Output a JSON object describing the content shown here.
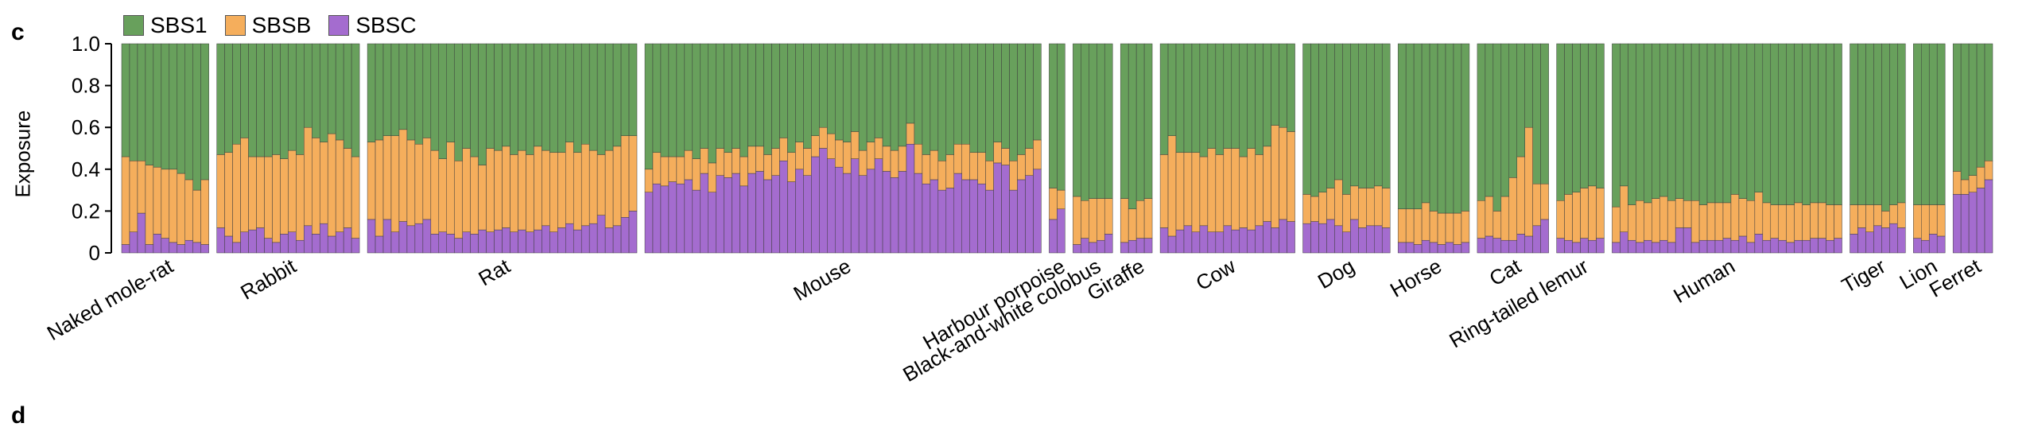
{
  "panel_letters": {
    "c": "c",
    "d": "d"
  },
  "chart_data": {
    "type": "bar",
    "stacked": true,
    "normalized": true,
    "title": "",
    "xlabel": "",
    "ylabel": "Exposure",
    "ylim": [
      0,
      1.0
    ],
    "yticks": [
      "0",
      "0.2",
      "0.4",
      "0.6",
      "0.8",
      "1.0"
    ],
    "legend_position": "top-left",
    "series_order": [
      "SBSC",
      "SBSB",
      "SBS1"
    ],
    "series_colors": {
      "SBS1": "#68a05c",
      "SBSB": "#f5ae5c",
      "SBSC": "#a46ccf"
    },
    "legend": [
      "SBS1",
      "SBSB",
      "SBSC"
    ],
    "groups": [
      {
        "name": "Naked mole-rat",
        "SBSC": [
          0.04,
          0.1,
          0.19,
          0.04,
          0.09,
          0.07,
          0.05,
          0.04,
          0.06,
          0.05,
          0.04
        ],
        "SBSB": [
          0.42,
          0.34,
          0.25,
          0.38,
          0.32,
          0.33,
          0.35,
          0.34,
          0.29,
          0.25,
          0.31
        ]
      },
      {
        "name": "Rabbit",
        "SBSC": [
          0.12,
          0.08,
          0.05,
          0.1,
          0.11,
          0.12,
          0.07,
          0.05,
          0.09,
          0.1,
          0.06,
          0.13,
          0.09,
          0.14,
          0.08,
          0.1,
          0.12,
          0.07
        ],
        "SBSB": [
          0.35,
          0.4,
          0.47,
          0.45,
          0.35,
          0.34,
          0.39,
          0.42,
          0.36,
          0.39,
          0.41,
          0.47,
          0.46,
          0.39,
          0.49,
          0.44,
          0.38,
          0.39
        ]
      },
      {
        "name": "Rat",
        "SBSC": [
          0.16,
          0.08,
          0.16,
          0.1,
          0.15,
          0.13,
          0.14,
          0.16,
          0.09,
          0.1,
          0.09,
          0.07,
          0.1,
          0.09,
          0.11,
          0.1,
          0.11,
          0.12,
          0.1,
          0.11,
          0.1,
          0.11,
          0.13,
          0.1,
          0.12,
          0.14,
          0.11,
          0.13,
          0.14,
          0.18,
          0.12,
          0.13,
          0.17,
          0.2
        ],
        "SBSB": [
          0.37,
          0.46,
          0.4,
          0.46,
          0.44,
          0.41,
          0.38,
          0.39,
          0.4,
          0.35,
          0.44,
          0.37,
          0.4,
          0.37,
          0.31,
          0.4,
          0.38,
          0.39,
          0.37,
          0.38,
          0.37,
          0.4,
          0.36,
          0.38,
          0.36,
          0.39,
          0.37,
          0.39,
          0.35,
          0.29,
          0.37,
          0.38,
          0.39,
          0.36
        ]
      },
      {
        "name": "Mouse",
        "SBSC": [
          0.29,
          0.33,
          0.32,
          0.34,
          0.33,
          0.35,
          0.3,
          0.38,
          0.29,
          0.37,
          0.36,
          0.38,
          0.32,
          0.38,
          0.39,
          0.35,
          0.37,
          0.44,
          0.34,
          0.4,
          0.37,
          0.46,
          0.5,
          0.45,
          0.41,
          0.38,
          0.45,
          0.37,
          0.4,
          0.45,
          0.39,
          0.36,
          0.39,
          0.52,
          0.38,
          0.33,
          0.35,
          0.3,
          0.31,
          0.38,
          0.35,
          0.35,
          0.33,
          0.3,
          0.43,
          0.42,
          0.3,
          0.35,
          0.37,
          0.4
        ],
        "SBSB": [
          0.11,
          0.15,
          0.14,
          0.12,
          0.13,
          0.14,
          0.15,
          0.12,
          0.14,
          0.13,
          0.12,
          0.12,
          0.14,
          0.13,
          0.12,
          0.12,
          0.13,
          0.11,
          0.14,
          0.13,
          0.13,
          0.1,
          0.1,
          0.12,
          0.13,
          0.15,
          0.13,
          0.12,
          0.13,
          0.1,
          0.12,
          0.13,
          0.12,
          0.1,
          0.14,
          0.14,
          0.14,
          0.14,
          0.16,
          0.14,
          0.17,
          0.13,
          0.15,
          0.14,
          0.1,
          0.08,
          0.14,
          0.12,
          0.13,
          0.14
        ]
      },
      {
        "name": "Harbour porpoise",
        "SBSC": [
          0.16,
          0.21
        ],
        "SBSB": [
          0.15,
          0.09
        ]
      },
      {
        "name": "Black-and-white colobus",
        "SBSC": [
          0.04,
          0.07,
          0.05,
          0.06,
          0.09
        ],
        "SBSB": [
          0.23,
          0.18,
          0.21,
          0.2,
          0.17
        ]
      },
      {
        "name": "Giraffe",
        "SBSC": [
          0.05,
          0.06,
          0.07,
          0.07
        ],
        "SBSB": [
          0.21,
          0.15,
          0.18,
          0.19
        ]
      },
      {
        "name": "Cow",
        "SBSC": [
          0.12,
          0.08,
          0.11,
          0.13,
          0.1,
          0.13,
          0.1,
          0.1,
          0.13,
          0.11,
          0.12,
          0.11,
          0.13,
          0.15,
          0.12,
          0.16,
          0.15
        ],
        "SBSB": [
          0.35,
          0.48,
          0.37,
          0.35,
          0.38,
          0.33,
          0.4,
          0.37,
          0.37,
          0.39,
          0.34,
          0.39,
          0.34,
          0.36,
          0.49,
          0.44,
          0.43
        ]
      },
      {
        "name": "Dog",
        "SBSC": [
          0.14,
          0.15,
          0.14,
          0.16,
          0.13,
          0.1,
          0.16,
          0.12,
          0.13,
          0.13,
          0.12
        ],
        "SBSB": [
          0.14,
          0.12,
          0.15,
          0.15,
          0.22,
          0.18,
          0.16,
          0.19,
          0.18,
          0.19,
          0.19
        ]
      },
      {
        "name": "Horse",
        "SBSC": [
          0.05,
          0.05,
          0.04,
          0.06,
          0.05,
          0.04,
          0.05,
          0.04,
          0.05
        ],
        "SBSB": [
          0.16,
          0.16,
          0.17,
          0.18,
          0.15,
          0.15,
          0.14,
          0.15,
          0.15
        ]
      },
      {
        "name": "Cat",
        "SBSC": [
          0.07,
          0.08,
          0.07,
          0.06,
          0.06,
          0.09,
          0.08,
          0.13,
          0.16
        ],
        "SBSB": [
          0.18,
          0.19,
          0.13,
          0.21,
          0.3,
          0.37,
          0.52,
          0.2,
          0.17
        ]
      },
      {
        "name": "Ring-tailed lemur",
        "SBSC": [
          0.07,
          0.06,
          0.05,
          0.07,
          0.06,
          0.07
        ],
        "SBSB": [
          0.18,
          0.22,
          0.24,
          0.24,
          0.26,
          0.24
        ]
      },
      {
        "name": "Human",
        "SBSC": [
          0.05,
          0.1,
          0.06,
          0.05,
          0.06,
          0.05,
          0.06,
          0.05,
          0.12,
          0.12,
          0.05,
          0.06,
          0.06,
          0.06,
          0.07,
          0.06,
          0.08,
          0.05,
          0.09,
          0.06,
          0.07,
          0.06,
          0.05,
          0.06,
          0.06,
          0.07,
          0.07,
          0.06,
          0.07
        ],
        "SBSB": [
          0.17,
          0.22,
          0.17,
          0.2,
          0.18,
          0.21,
          0.21,
          0.2,
          0.14,
          0.13,
          0.2,
          0.17,
          0.18,
          0.18,
          0.17,
          0.22,
          0.18,
          0.2,
          0.2,
          0.18,
          0.16,
          0.17,
          0.18,
          0.18,
          0.17,
          0.17,
          0.17,
          0.17,
          0.16
        ]
      },
      {
        "name": "Tiger",
        "SBSC": [
          0.09,
          0.12,
          0.1,
          0.13,
          0.12,
          0.14,
          0.12
        ],
        "SBSB": [
          0.14,
          0.11,
          0.13,
          0.1,
          0.08,
          0.09,
          0.12
        ]
      },
      {
        "name": "Lion",
        "SBSC": [
          0.07,
          0.06,
          0.09,
          0.08
        ],
        "SBSB": [
          0.16,
          0.17,
          0.14,
          0.15
        ]
      },
      {
        "name": "Ferret",
        "SBSC": [
          0.28,
          0.28,
          0.29,
          0.31,
          0.35
        ],
        "SBSB": [
          0.11,
          0.07,
          0.08,
          0.1,
          0.09
        ]
      }
    ]
  }
}
